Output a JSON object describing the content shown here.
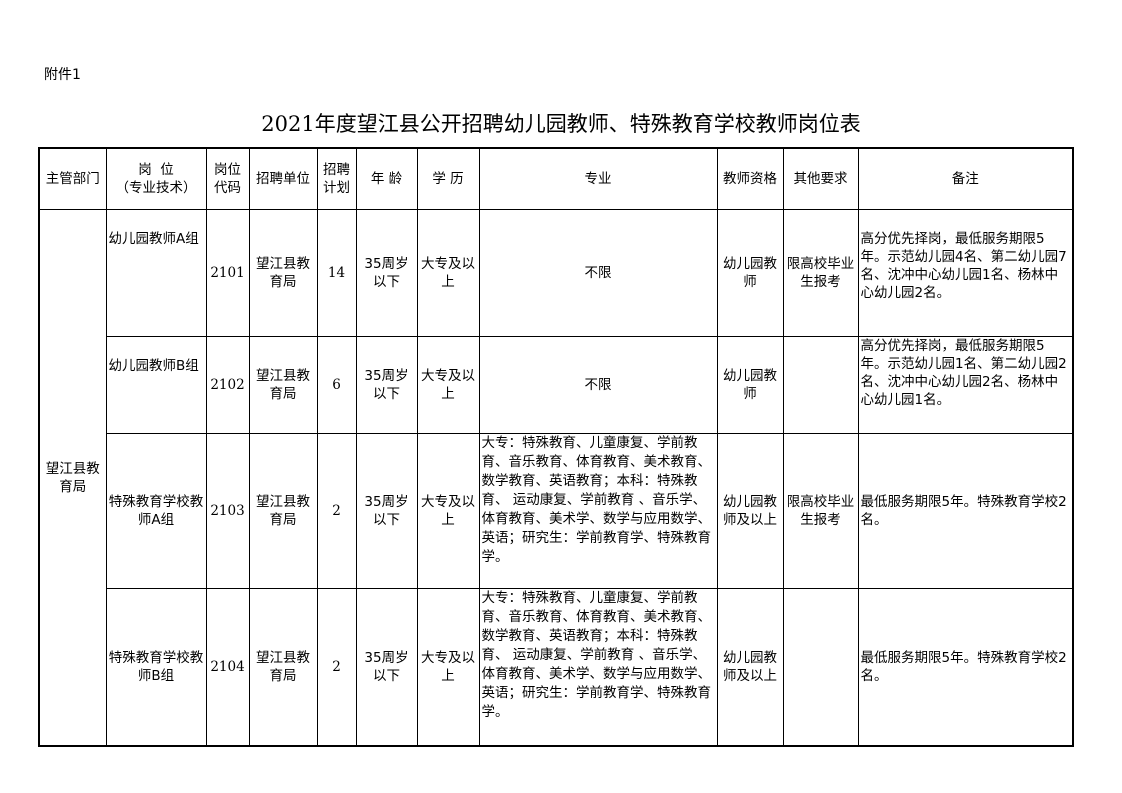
{
  "attachment_label": "附件1",
  "title": "2021年度望江县公开招聘幼儿园教师、特殊教育学校教师岗位表",
  "headers": {
    "dept": "主管部门",
    "position": "岗  位",
    "position_sub": "（专业技术）",
    "code": "岗位代码",
    "unit": "招聘单位",
    "plan": "招聘计划",
    "age": "年 龄",
    "edu": "学 历",
    "major": "专业",
    "qual": "教师资格",
    "other": "其他要求",
    "note": "备注"
  },
  "department": "望江县教育局",
  "rows": [
    {
      "position": "幼儿园教师A组",
      "code": "2101",
      "unit": "望江县教育局",
      "plan": "14",
      "age": "35周岁以下",
      "edu": "大专及以上",
      "major": "不限",
      "qual": "幼儿园教师",
      "other": "限高校毕业生报考",
      "note": "高分优先择岗，最低服务期限5年。示范幼儿园4名、第二幼儿园7名、沈冲中心幼儿园1名、杨林中心幼儿园2名。"
    },
    {
      "position": "幼儿园教师B组",
      "code": "2102",
      "unit": "望江县教育局",
      "plan": "6",
      "age": "35周岁以下",
      "edu": "大专及以上",
      "major": "不限",
      "qual": "幼儿园教师",
      "other": "",
      "note": "高分优先择岗，最低服务期限5年。示范幼儿园1名、第二幼儿园2名、沈冲中心幼儿园2名、杨林中心幼儿园1名。"
    },
    {
      "position": "特殊教育学校教师A组",
      "code": "2103",
      "unit": "望江县教育局",
      "plan": "2",
      "age": "35周岁以下",
      "edu": "大专及以上",
      "major": "大专：特殊教育、儿童康复、学前教育、音乐教育、体育教育、美术教育、数学教育、英语教育；本科：特殊教育、 运动康复、学前教育 、音乐学、体育教育、美术学、数学与应用数学、英语；研究生：学前教育学、特殊教育学。",
      "qual": "幼儿园教师及以上",
      "other": "限高校毕业生报考",
      "note": "最低服务期限5年。特殊教育学校2名。"
    },
    {
      "position": "特殊教育学校教师B组",
      "code": "2104",
      "unit": "望江县教育局",
      "plan": "2",
      "age": "35周岁以下",
      "edu": "大专及以上",
      "major": "大专：特殊教育、儿童康复、学前教育、音乐教育、体育教育、美术教育、数学教育、英语教育；本科：特殊教育、 运动康复、学前教育 、音乐学、体育教育、美术学、数学与应用数学、英语；研究生：学前教育学、特殊教育学。",
      "qual": "幼儿园教师及以上",
      "other": "",
      "note": "最低服务期限5年。特殊教育学校2名。"
    }
  ]
}
